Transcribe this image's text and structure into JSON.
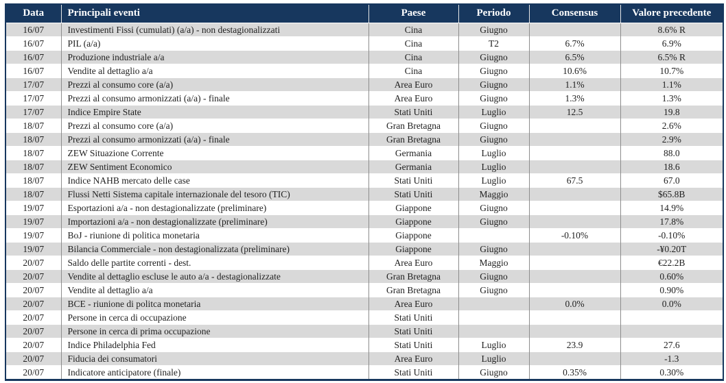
{
  "colors": {
    "header_bg": "#17375E",
    "header_text": "#FFFFFF",
    "row_alt": "#D9D9D9",
    "row_plain": "#FFFFFF",
    "body_text": "#1F1F1F",
    "vertical_grid": "#8C8C8C",
    "horizontal_grid": "#FFFFFF"
  },
  "table": {
    "column_keys": [
      "data",
      "evento",
      "paese",
      "periodo",
      "consensus",
      "valore"
    ],
    "columns": [
      {
        "key": "data",
        "label": "Data"
      },
      {
        "key": "evento",
        "label": "Principali eventi"
      },
      {
        "key": "paese",
        "label": "Paese"
      },
      {
        "key": "periodo",
        "label": "Periodo"
      },
      {
        "key": "consensus",
        "label": "Consensus"
      },
      {
        "key": "valore",
        "label": "Valore precedente"
      }
    ],
    "rows": [
      {
        "data": "16/07",
        "evento": "Investimenti Fissi (cumulati) (a/a) - non destagionalizzati",
        "paese": "Cina",
        "periodo": "Giugno",
        "consensus": "",
        "valore": "8.6% R"
      },
      {
        "data": "16/07",
        "evento": "PIL (a/a)",
        "paese": "Cina",
        "periodo": "T2",
        "consensus": "6.7%",
        "valore": "6.9%"
      },
      {
        "data": "16/07",
        "evento": "Produzione industriale a/a",
        "paese": "Cina",
        "periodo": "Giugno",
        "consensus": "6.5%",
        "valore": "6.5% R"
      },
      {
        "data": "16/07",
        "evento": "Vendite al dettaglio a/a",
        "paese": "Cina",
        "periodo": "Giugno",
        "consensus": "10.6%",
        "valore": "10.7%"
      },
      {
        "data": "17/07",
        "evento": "Prezzi al consumo core  (a/a)",
        "paese": "Area Euro",
        "periodo": "Giugno",
        "consensus": "1.1%",
        "valore": "1.1%"
      },
      {
        "data": "17/07",
        "evento": "Prezzi al consumo armonizzati (a/a) - finale",
        "paese": "Area Euro",
        "periodo": "Giugno",
        "consensus": "1.3%",
        "valore": "1.3%"
      },
      {
        "data": "17/07",
        "evento": "Indice Empire State",
        "paese": "Stati Uniti",
        "periodo": "Luglio",
        "consensus": "12.5",
        "valore": "19.8"
      },
      {
        "data": "18/07",
        "evento": "Prezzi al consumo core (a/a)",
        "paese": "Gran Bretagna",
        "periodo": "Giugno",
        "consensus": "",
        "valore": "2.6%"
      },
      {
        "data": "18/07",
        "evento": "Prezzi al consumo armonizzati (a/a) - finale",
        "paese": "Gran Bretagna",
        "periodo": "Giugno",
        "consensus": "",
        "valore": "2.9%"
      },
      {
        "data": "18/07",
        "evento": "ZEW Situazione Corrente",
        "paese": "Germania",
        "periodo": "Luglio",
        "consensus": "",
        "valore": "88.0"
      },
      {
        "data": "18/07",
        "evento": "ZEW Sentiment Economico",
        "paese": "Germania",
        "periodo": "Luglio",
        "consensus": "",
        "valore": "18.6"
      },
      {
        "data": "18/07",
        "evento": "Indice NAHB mercato delle case",
        "paese": "Stati Uniti",
        "periodo": "Luglio",
        "consensus": "67.5",
        "valore": "67.0"
      },
      {
        "data": "18/07",
        "evento": "Flussi Netti Sistema capitale internazionale del tesoro (TIC)",
        "paese": "Stati Uniti",
        "periodo": "Maggio",
        "consensus": "",
        "valore": "$65.8B"
      },
      {
        "data": "19/07",
        "evento": "Esportazioni a/a - non destagionalizzate (preliminare)",
        "paese": "Giappone",
        "periodo": "Giugno",
        "consensus": "",
        "valore": "14.9%"
      },
      {
        "data": "19/07",
        "evento": "Importazioni a/a - non destagionalizzate (preliminare)",
        "paese": "Giappone",
        "periodo": "Giugno",
        "consensus": "",
        "valore": "17.8%"
      },
      {
        "data": "19/07",
        "evento": "BoJ - riunione di politica monetaria",
        "paese": "Giappone",
        "periodo": "",
        "consensus": "-0.10%",
        "valore": "-0.10%"
      },
      {
        "data": "19/07",
        "evento": "Bilancia Commerciale -  non destagionalizzata (preliminare)",
        "paese": "Giappone",
        "periodo": "Giugno",
        "consensus": "",
        "valore": "-¥0.20T"
      },
      {
        "data": "20/07",
        "evento": "Saldo delle partite correnti - dest.",
        "paese": "Area Euro",
        "periodo": "Maggio",
        "consensus": "",
        "valore": "€22.2B"
      },
      {
        "data": "20/07",
        "evento": "Vendite al dettaglio escluse le auto a/a  - destagionalizzate",
        "paese": "Gran Bretagna",
        "periodo": "Giugno",
        "consensus": "",
        "valore": "0.60%"
      },
      {
        "data": "20/07",
        "evento": "Vendite al dettaglio a/a",
        "paese": "Gran Bretagna",
        "periodo": "Giugno",
        "consensus": "",
        "valore": "0.90%"
      },
      {
        "data": "20/07",
        "evento": "BCE - riunione di politca monetaria",
        "paese": "Area Euro",
        "periodo": "",
        "consensus": "0.0%",
        "valore": "0.0%"
      },
      {
        "data": "20/07",
        "evento": "Persone in cerca di occupazione",
        "paese": "Stati Uniti",
        "periodo": "",
        "consensus": "",
        "valore": ""
      },
      {
        "data": "20/07",
        "evento": "Persone in cerca di prima occupazione",
        "paese": "Stati Uniti",
        "periodo": "",
        "consensus": "",
        "valore": ""
      },
      {
        "data": "20/07",
        "evento": "Indice Philadelphia Fed",
        "paese": "Stati Uniti",
        "periodo": "Luglio",
        "consensus": "23.9",
        "valore": "27.6"
      },
      {
        "data": "20/07",
        "evento": "Fiducia dei consumatori",
        "paese": "Area Euro",
        "periodo": "Luglio",
        "consensus": "",
        "valore": "-1.3"
      },
      {
        "data": "20/07",
        "evento": "Indicatore anticipatore (finale)",
        "paese": "Stati Uniti",
        "periodo": "Giugno",
        "consensus": "0.35%",
        "valore": "0.30%"
      }
    ]
  }
}
